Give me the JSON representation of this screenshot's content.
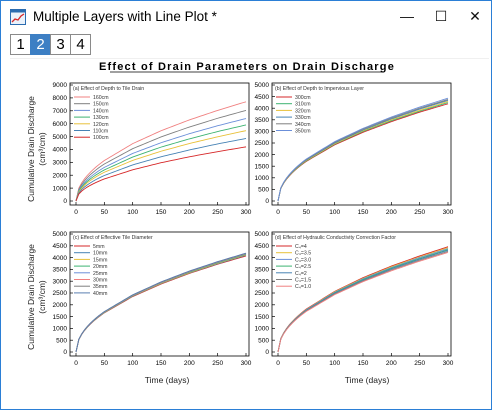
{
  "window": {
    "title": "Multiple Layers with Line Plot *",
    "controls": {
      "minimize": "—",
      "maximize": "☐",
      "close": "✕"
    }
  },
  "layers": {
    "tabs": [
      "1",
      "2",
      "3",
      "4"
    ],
    "active": "2"
  },
  "figure": {
    "title": "Effect of Drain Parameters on Drain Discharge",
    "ylabel_line1": "Cumulative Drain Discharge",
    "ylabel_line2": "(cm³/cm)",
    "xlabel": "Time (days)"
  },
  "colors": {
    "accent": "#3d7fc4",
    "series_palette": [
      "#f08080",
      "#7f7f7f",
      "#6b8fd9",
      "#3cb371",
      "#e8c13a",
      "#4682b4",
      "#d62728"
    ]
  },
  "chart_data": [
    {
      "type": "line",
      "panel": "a",
      "title": "(a) Effect of Depth to Tile Drain",
      "x": [
        0,
        50,
        100,
        150,
        200,
        250,
        300
      ],
      "xlim": [
        0,
        300
      ],
      "ylim": [
        0,
        9000
      ],
      "xticks": [
        0,
        50,
        100,
        150,
        200,
        250,
        300
      ],
      "yticks": [
        0,
        1000,
        2000,
        3000,
        4000,
        5000,
        6000,
        7000,
        8000,
        9000
      ],
      "legend_position": "top-left",
      "series": [
        {
          "name": "160cm",
          "color": "#f08080",
          "values": [
            0,
            3140,
            4450,
            5450,
            6290,
            7030,
            7700
          ]
        },
        {
          "name": "150cm",
          "color": "#7f7f7f",
          "values": [
            0,
            2870,
            4060,
            4970,
            5740,
            6420,
            7030
          ]
        },
        {
          "name": "140cm",
          "color": "#6b8fd9",
          "values": [
            0,
            2610,
            3690,
            4520,
            5220,
            5840,
            6400
          ]
        },
        {
          "name": "130cm",
          "color": "#3cb371",
          "values": [
            0,
            2410,
            3410,
            4180,
            4820,
            5390,
            5900
          ]
        },
        {
          "name": "120cm",
          "color": "#e8c13a",
          "values": [
            0,
            2230,
            3150,
            3860,
            4460,
            4980,
            5460
          ]
        },
        {
          "name": "110cm",
          "color": "#4682b4",
          "values": [
            0,
            1980,
            2800,
            3430,
            3960,
            4430,
            4850
          ]
        },
        {
          "name": "100cm",
          "color": "#d62728",
          "values": [
            0,
            1710,
            2420,
            2970,
            3430,
            3830,
            4200
          ]
        }
      ]
    },
    {
      "type": "line",
      "panel": "b",
      "title": "(b) Effect of Depth to Impervious Layer",
      "x": [
        0,
        50,
        100,
        150,
        200,
        250,
        300
      ],
      "xlim": [
        0,
        300
      ],
      "ylim": [
        0,
        5000
      ],
      "xticks": [
        0,
        50,
        100,
        150,
        200,
        250,
        300
      ],
      "yticks": [
        0,
        500,
        1000,
        1500,
        2000,
        2500,
        3000,
        3500,
        4000,
        4500,
        5000
      ],
      "legend_position": "top-left",
      "series": [
        {
          "name": "300cm",
          "color": "#d62728",
          "values": [
            0,
            1710,
            2420,
            2960,
            3420,
            3830,
            4190
          ]
        },
        {
          "name": "310cm",
          "color": "#3cb371",
          "values": [
            0,
            1730,
            2450,
            3000,
            3460,
            3870,
            4240
          ]
        },
        {
          "name": "320cm",
          "color": "#e8c13a",
          "values": [
            0,
            1750,
            2470,
            3030,
            3500,
            3910,
            4290
          ]
        },
        {
          "name": "330cm",
          "color": "#4682b4",
          "values": [
            0,
            1770,
            2500,
            3060,
            3540,
            3960,
            4340
          ]
        },
        {
          "name": "340cm",
          "color": "#7f7f7f",
          "values": [
            0,
            1790,
            2530,
            3100,
            3580,
            4000,
            4380
          ]
        },
        {
          "name": "350cm",
          "color": "#6b8fd9",
          "values": [
            0,
            1810,
            2560,
            3130,
            3620,
            4050,
            4430
          ]
        }
      ]
    },
    {
      "type": "line",
      "panel": "c",
      "title": "(c) Effect of Effective Tile Diameter",
      "x": [
        0,
        50,
        100,
        150,
        200,
        250,
        300
      ],
      "xlim": [
        0,
        300
      ],
      "ylim": [
        0,
        5000
      ],
      "xticks": [
        0,
        50,
        100,
        150,
        200,
        250,
        300
      ],
      "yticks": [
        0,
        500,
        1000,
        1500,
        2000,
        2500,
        3000,
        3500,
        4000,
        4500,
        5000
      ],
      "legend_position": "top-left",
      "series": [
        {
          "name": "5mm",
          "color": "#d62728",
          "values": [
            0,
            1660,
            2350,
            2880,
            3330,
            3720,
            4070
          ]
        },
        {
          "name": "10mm",
          "color": "#4682b4",
          "values": [
            0,
            1670,
            2370,
            2900,
            3350,
            3740,
            4100
          ]
        },
        {
          "name": "15mm",
          "color": "#e8c13a",
          "values": [
            0,
            1680,
            2380,
            2910,
            3360,
            3760,
            4120
          ]
        },
        {
          "name": "20mm",
          "color": "#3cb371",
          "values": [
            0,
            1690,
            2390,
            2930,
            3380,
            3780,
            4140
          ]
        },
        {
          "name": "25mm",
          "color": "#6b8fd9",
          "values": [
            0,
            1700,
            2400,
            2940,
            3400,
            3800,
            4160
          ]
        },
        {
          "name": "30mm",
          "color": "#f08080",
          "values": [
            0,
            1700,
            2410,
            2950,
            3410,
            3810,
            4170
          ]
        },
        {
          "name": "35mm",
          "color": "#7f7f7f",
          "values": [
            0,
            1710,
            2420,
            2960,
            3420,
            3820,
            4180
          ]
        },
        {
          "name": "40mm",
          "color": "#5a7fb0",
          "values": [
            0,
            1710,
            2420,
            2970,
            3430,
            3830,
            4190
          ]
        }
      ]
    },
    {
      "type": "line",
      "panel": "d",
      "title": "(d) Effect of Hydraulic Conductivity Correction Factor",
      "x": [
        0,
        50,
        100,
        150,
        200,
        250,
        300
      ],
      "xlim": [
        0,
        300
      ],
      "ylim": [
        0,
        5000
      ],
      "xticks": [
        0,
        50,
        100,
        150,
        200,
        250,
        300
      ],
      "yticks": [
        0,
        500,
        1000,
        1500,
        2000,
        2500,
        3000,
        3500,
        4000,
        4500,
        5000
      ],
      "legend_position": "top-left",
      "series": [
        {
          "name": "C₄=4",
          "color": "#d62728",
          "values": [
            0,
            1820,
            2570,
            3150,
            3640,
            4070,
            4460
          ]
        },
        {
          "name": "C₄=3.5",
          "color": "#e8c13a",
          "values": [
            0,
            1800,
            2550,
            3120,
            3610,
            4030,
            4420
          ]
        },
        {
          "name": "C₄=3.0",
          "color": "#6b8fd9",
          "values": [
            0,
            1790,
            2530,
            3100,
            3580,
            4000,
            4380
          ]
        },
        {
          "name": "C₄=2.5",
          "color": "#3cb371",
          "values": [
            0,
            1770,
            2510,
            3070,
            3550,
            3960,
            4340
          ]
        },
        {
          "name": "C₄=2",
          "color": "#4682b4",
          "values": [
            0,
            1760,
            2490,
            3040,
            3520,
            3930,
            4310
          ]
        },
        {
          "name": "C₄=1.5",
          "color": "#7f7f7f",
          "values": [
            0,
            1740,
            2460,
            3010,
            3480,
            3890,
            4260
          ]
        },
        {
          "name": "C₄=1.0",
          "color": "#f08080",
          "values": [
            0,
            1720,
            2430,
            2980,
            3440,
            3850,
            4220
          ]
        }
      ]
    }
  ]
}
